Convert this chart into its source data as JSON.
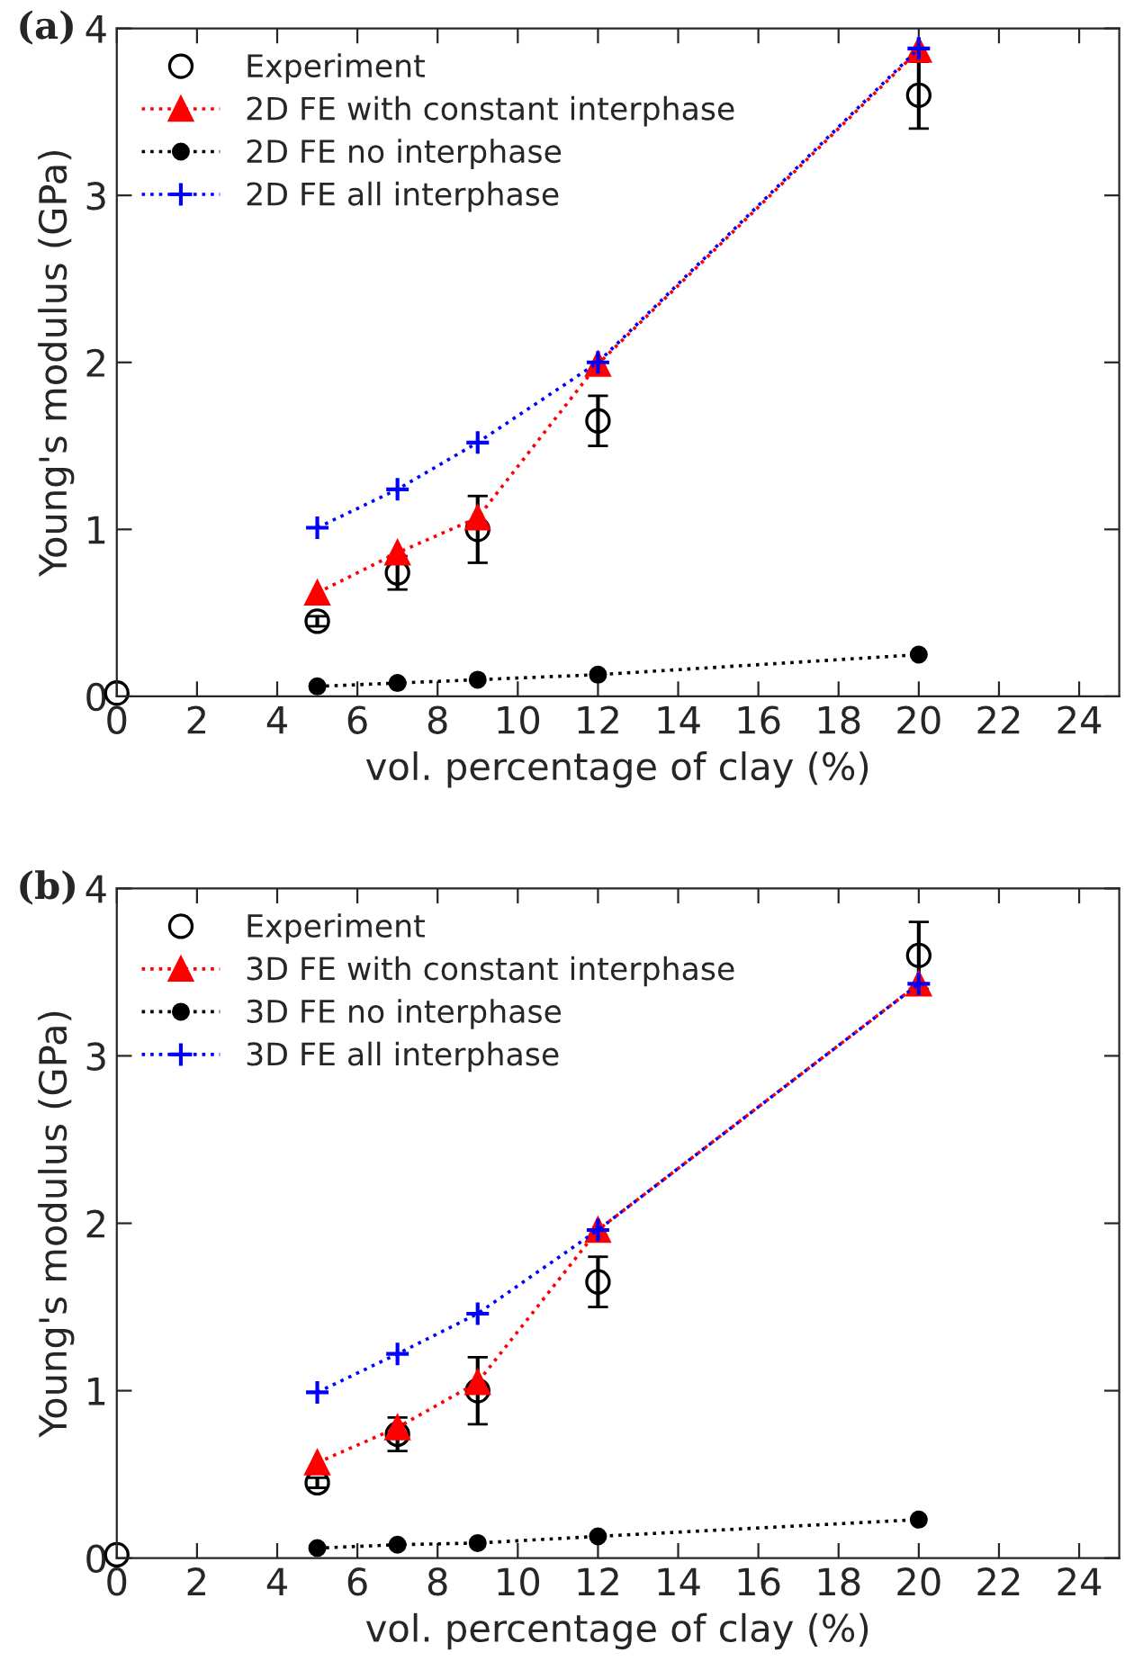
{
  "chart_data": [
    {
      "type": "line",
      "title": "(a)",
      "xlabel": "vol. percentage of clay (%)",
      "ylabel": "Young's modulus (GPa)",
      "xlim": [
        0,
        25
      ],
      "xticks": [
        0,
        2,
        4,
        6,
        8,
        10,
        12,
        14,
        16,
        18,
        20,
        22,
        24
      ],
      "ylim": [
        0,
        4
      ],
      "yticks": [
        0,
        1,
        2,
        3,
        4
      ],
      "grid": false,
      "legend": "top left",
      "line_style": "dotted",
      "series": [
        {
          "name": "Experiment",
          "type": "scatter",
          "marker": "circle",
          "color": "#000000",
          "x": [
            0,
            5,
            7,
            9,
            12,
            20
          ],
          "values": [
            0.02,
            0.45,
            0.74,
            1.0,
            1.65,
            3.6
          ],
          "errors": [
            null,
            0.03,
            0.1,
            0.2,
            0.15,
            0.2
          ]
        },
        {
          "name": "2D FE with constant interphase",
          "marker": "triangle",
          "color": "#ff0000",
          "x": [
            5,
            7,
            9,
            12,
            20
          ],
          "values": [
            0.62,
            0.86,
            1.07,
            1.99,
            3.87
          ]
        },
        {
          "name": "2D FE no interphase",
          "marker": "circle",
          "color": "#000000",
          "x": [
            5,
            7,
            9,
            12,
            20
          ],
          "values": [
            0.06,
            0.08,
            0.1,
            0.13,
            0.25
          ]
        },
        {
          "name": "2D FE all interphase",
          "marker": "cross",
          "color": "#0000ff",
          "x": [
            5,
            7,
            9,
            12,
            20
          ],
          "values": [
            1.01,
            1.24,
            1.52,
            2.0,
            3.88
          ]
        }
      ]
    },
    {
      "type": "line",
      "title": "(b)",
      "xlabel": "vol. percentage of clay (%)",
      "ylabel": "Young's modulus (GPa)",
      "xlim": [
        0,
        25
      ],
      "xticks": [
        0,
        2,
        4,
        6,
        8,
        10,
        12,
        14,
        16,
        18,
        20,
        22,
        24
      ],
      "ylim": [
        0,
        4
      ],
      "yticks": [
        0,
        1,
        2,
        3,
        4
      ],
      "grid": false,
      "legend": "top left",
      "line_style": "dotted",
      "series": [
        {
          "name": "Experiment",
          "type": "scatter",
          "marker": "circle",
          "color": "#000000",
          "x": [
            0,
            5,
            7,
            9,
            12,
            20
          ],
          "values": [
            0.02,
            0.45,
            0.74,
            1.0,
            1.65,
            3.6
          ],
          "errors": [
            null,
            0.03,
            0.1,
            0.2,
            0.15,
            0.2
          ]
        },
        {
          "name": "3D FE with constant interphase",
          "marker": "triangle",
          "color": "#ff0000",
          "x": [
            5,
            7,
            9,
            12,
            20
          ],
          "values": [
            0.57,
            0.78,
            1.05,
            1.96,
            3.43
          ]
        },
        {
          "name": "3D FE no interphase",
          "marker": "circle",
          "color": "#000000",
          "x": [
            5,
            7,
            9,
            12,
            20
          ],
          "values": [
            0.06,
            0.08,
            0.09,
            0.13,
            0.23
          ]
        },
        {
          "name": "3D FE all interphase",
          "marker": "cross",
          "color": "#0000ff",
          "x": [
            5,
            7,
            9,
            12,
            20
          ],
          "values": [
            0.99,
            1.22,
            1.46,
            1.96,
            3.43
          ]
        }
      ]
    }
  ]
}
